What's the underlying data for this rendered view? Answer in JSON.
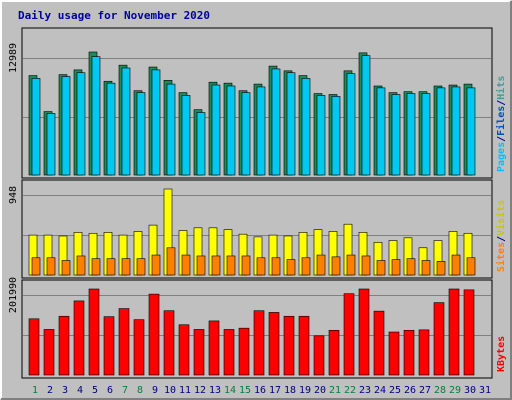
{
  "chart_data": {
    "type": "bar",
    "title": "Daily usage for November 2020",
    "x": [
      "1",
      "2",
      "3",
      "4",
      "5",
      "6",
      "7",
      "8",
      "9",
      "10",
      "11",
      "12",
      "13",
      "14",
      "15",
      "16",
      "17",
      "18",
      "19",
      "20",
      "21",
      "22",
      "23",
      "24",
      "25",
      "26",
      "27",
      "28",
      "29",
      "30",
      "31"
    ],
    "weekend_days": [
      1,
      7,
      8,
      14,
      15,
      21,
      22,
      28,
      29
    ],
    "panels": [
      {
        "id": "hits",
        "ymax_label": "12989",
        "ymax": 12989,
        "legend": [
          {
            "text": "Pages",
            "color": "#00c0ff"
          },
          {
            "text": "/",
            "color": "#0000a0"
          },
          {
            "text": "Files",
            "color": "#0050c0"
          },
          {
            "text": "/",
            "color": "#0000a0"
          },
          {
            "text": "Hits",
            "color": "#4a9a9a"
          }
        ],
        "series": [
          {
            "name": "Hits",
            "color": "#1a8a5a",
            "values": [
              10500,
              6700,
              10600,
              11100,
              12989,
              9900,
              11600,
              8900,
              11400,
              10000,
              8700,
              6900,
              9800,
              9700,
              8900,
              9600,
              11500,
              11000,
              10500,
              8600,
              8500,
              11000,
              12900,
              9400,
              8700,
              8800,
              8800,
              9400,
              9500,
              9600
            ]
          },
          {
            "name": "Files",
            "color": "#00c8f0",
            "values": [
              10200,
              6500,
              10400,
              10800,
              12500,
              9700,
              11300,
              8700,
              11100,
              9600,
              8400,
              6600,
              9500,
              9400,
              8700,
              9300,
              11200,
              10800,
              10200,
              8400,
              8300,
              10700,
              12600,
              9200,
              8500,
              8600,
              8600,
              9200,
              9300,
              9200
            ]
          }
        ]
      },
      {
        "id": "visits",
        "ymax_label": "948",
        "ymax": 948,
        "legend": [
          {
            "text": "Sites",
            "color": "#ff8000"
          },
          {
            "text": "/",
            "color": "#0000a0"
          },
          {
            "text": "Visits",
            "color": "#c8c800"
          }
        ],
        "series": [
          {
            "name": "Visits",
            "color": "#ffff00",
            "values": [
              440,
              440,
              430,
              470,
              460,
              470,
              440,
              480,
              550,
              948,
              490,
              520,
              520,
              500,
              450,
              420,
              440,
              430,
              470,
              500,
              480,
              560,
              470,
              360,
              380,
              410,
              300,
              380,
              480,
              460
            ]
          },
          {
            "name": "Sites",
            "color": "#ff8000",
            "values": [
              190,
              190,
              160,
              210,
              180,
              180,
              180,
              180,
              220,
              300,
              220,
              210,
              210,
              210,
              210,
              190,
              190,
              170,
              190,
              220,
              200,
              220,
              210,
              160,
              170,
              180,
              160,
              150,
              220,
              190
            ]
          }
        ]
      },
      {
        "id": "kbytes",
        "ymax_label": "201990",
        "ymax": 201990,
        "legend": [
          {
            "text": "KBytes",
            "color": "#ff0000"
          }
        ],
        "series": [
          {
            "name": "KBytes",
            "color": "#ff0000",
            "values": [
              132000,
              107000,
              138000,
              174000,
              201990,
              137000,
              156000,
              130000,
              190000,
              151000,
              118000,
              107000,
              127000,
              107000,
              110000,
              151000,
              147000,
              138000,
              138000,
              92000,
              105000,
              191000,
              201990,
              150000,
              101000,
              105000,
              106000,
              170000,
              201990,
              200000
            ]
          }
        ]
      }
    ]
  }
}
